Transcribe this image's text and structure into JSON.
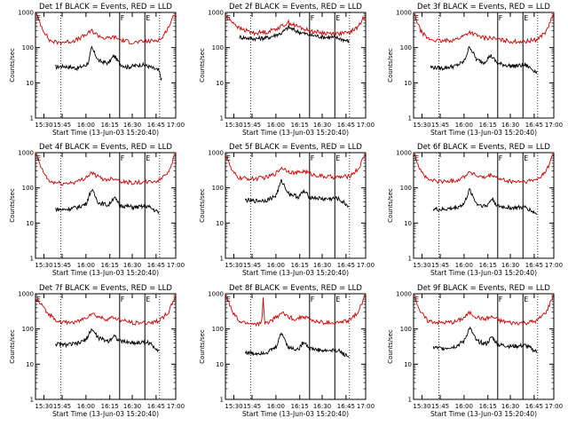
{
  "chart_data": [
    {
      "type": "line",
      "title": "Det 1f BLACK = Events, RED = LLD",
      "xlabel": "Start Time (13-Jun-03 15:20:40)",
      "ylabel": "Counts/sec",
      "xticks": [
        "15:30",
        "15:45",
        "16:00",
        "16:15",
        "16:30",
        "16:45",
        "17:00"
      ],
      "yticks": [
        "1",
        "10",
        "100",
        "1000"
      ],
      "ylim": [
        1,
        1000
      ],
      "ylog": true,
      "markers": [
        "E",
        "F",
        "E"
      ],
      "series": [
        {
          "color": "#000000",
          "x": [
            0.14,
            0.2,
            0.3,
            0.36,
            0.38,
            0.4,
            0.45,
            0.52,
            0.56,
            0.6,
            0.65,
            0.7,
            0.75,
            0.8,
            0.88,
            0.9
          ],
          "values": [
            28,
            30,
            26,
            32,
            40,
            100,
            42,
            36,
            60,
            35,
            28,
            30,
            33,
            30,
            22,
            12
          ]
        },
        {
          "color": "#cc0000",
          "x": [
            0.0,
            0.05,
            0.1,
            0.15,
            0.25,
            0.3,
            0.36,
            0.4,
            0.45,
            0.5,
            0.56,
            0.62,
            0.7,
            0.75,
            0.8,
            0.85,
            0.9,
            0.95,
            1.0
          ],
          "values": [
            1000,
            350,
            160,
            140,
            150,
            170,
            230,
            300,
            220,
            180,
            200,
            160,
            140,
            145,
            150,
            160,
            180,
            400,
            1000
          ]
        }
      ]
    },
    {
      "type": "line",
      "title": "Det 2f BLACK = Events, RED = LLD",
      "xlabel": "Start Time (13-Jun-03 15:20:40)",
      "ylabel": "Counts/sec",
      "xticks": [
        "15:30",
        "15:45",
        "16:00",
        "16:15",
        "16:30",
        "16:45",
        "17:00"
      ],
      "yticks": [
        "1",
        "10",
        "100",
        "1000"
      ],
      "ylim": [
        1,
        1000
      ],
      "ylog": true,
      "markers": [
        "E",
        "F",
        "E"
      ],
      "series": [
        {
          "color": "#000000",
          "x": [
            0.1,
            0.2,
            0.3,
            0.4,
            0.45,
            0.5,
            0.55,
            0.6,
            0.7,
            0.8,
            0.88
          ],
          "values": [
            200,
            180,
            190,
            260,
            380,
            300,
            260,
            230,
            200,
            190,
            150
          ]
        },
        {
          "color": "#cc0000",
          "x": [
            0.0,
            0.05,
            0.1,
            0.2,
            0.3,
            0.4,
            0.45,
            0.5,
            0.55,
            0.6,
            0.7,
            0.8,
            0.88,
            0.95,
            1.0
          ],
          "values": [
            800,
            550,
            350,
            260,
            280,
            400,
            520,
            420,
            350,
            300,
            260,
            250,
            260,
            400,
            900
          ]
        }
      ]
    },
    {
      "type": "line",
      "title": "Det 3f BLACK = Events, RED = LLD",
      "xlabel": "Start Time (13-Jun-03 15:20:40)",
      "ylabel": "Counts/sec",
      "xticks": [
        "15:30",
        "15:45",
        "16:00",
        "16:15",
        "16:30",
        "16:45",
        "17:00"
      ],
      "yticks": [
        "1",
        "10",
        "100",
        "1000"
      ],
      "ylim": [
        1,
        1000
      ],
      "ylog": true,
      "markers": [
        "E",
        "F",
        "E"
      ],
      "series": [
        {
          "color": "#000000",
          "x": [
            0.12,
            0.2,
            0.3,
            0.36,
            0.4,
            0.45,
            0.5,
            0.55,
            0.6,
            0.7,
            0.8,
            0.88
          ],
          "values": [
            28,
            26,
            30,
            40,
            110,
            45,
            38,
            60,
            35,
            30,
            32,
            20
          ]
        },
        {
          "color": "#cc0000",
          "x": [
            0.0,
            0.05,
            0.1,
            0.2,
            0.3,
            0.36,
            0.4,
            0.45,
            0.5,
            0.55,
            0.6,
            0.7,
            0.8,
            0.88,
            0.95,
            1.0
          ],
          "values": [
            1000,
            300,
            180,
            150,
            170,
            220,
            280,
            220,
            190,
            190,
            170,
            150,
            150,
            170,
            300,
            1000
          ]
        }
      ]
    },
    {
      "type": "line",
      "title": "Det 4f BLACK = Events, RED = LLD",
      "xlabel": "Start Time (13-Jun-03 15:20:40)",
      "ylabel": "Counts/sec",
      "xticks": [
        "15:30",
        "15:45",
        "16:00",
        "16:15",
        "16:30",
        "16:45",
        "17:00"
      ],
      "yticks": [
        "1",
        "10",
        "100",
        "1000"
      ],
      "ylim": [
        1,
        1000
      ],
      "ylog": true,
      "markers": [
        "E",
        "F",
        "E"
      ],
      "series": [
        {
          "color": "#000000",
          "x": [
            0.14,
            0.2,
            0.3,
            0.36,
            0.4,
            0.45,
            0.52,
            0.56,
            0.6,
            0.7,
            0.8,
            0.88
          ],
          "values": [
            25,
            24,
            28,
            35,
            90,
            38,
            32,
            55,
            32,
            28,
            30,
            20
          ]
        },
        {
          "color": "#cc0000",
          "x": [
            0.0,
            0.05,
            0.1,
            0.2,
            0.3,
            0.36,
            0.4,
            0.45,
            0.5,
            0.56,
            0.62,
            0.7,
            0.8,
            0.88,
            0.95,
            1.0
          ],
          "values": [
            1000,
            300,
            150,
            130,
            150,
            200,
            270,
            200,
            170,
            190,
            150,
            140,
            145,
            160,
            300,
            1000
          ]
        }
      ]
    },
    {
      "type": "line",
      "title": "Det 5f BLACK = Events, RED = LLD",
      "xlabel": "Start Time (13-Jun-03 15:20:40)",
      "ylabel": "Counts/sec",
      "xticks": [
        "15:30",
        "15:45",
        "16:00",
        "16:15",
        "16:30",
        "16:45",
        "17:00"
      ],
      "yticks": [
        "1",
        "10",
        "100",
        "1000"
      ],
      "ylim": [
        1,
        1000
      ],
      "ylog": true,
      "markers": [
        "E",
        "F",
        "E"
      ],
      "series": [
        {
          "color": "#000000",
          "x": [
            0.14,
            0.2,
            0.3,
            0.36,
            0.4,
            0.45,
            0.52,
            0.56,
            0.6,
            0.7,
            0.8,
            0.88
          ],
          "values": [
            45,
            42,
            45,
            60,
            160,
            70,
            55,
            80,
            55,
            48,
            50,
            30
          ]
        },
        {
          "color": "#cc0000",
          "x": [
            0.0,
            0.05,
            0.1,
            0.2,
            0.3,
            0.36,
            0.4,
            0.45,
            0.5,
            0.56,
            0.62,
            0.7,
            0.8,
            0.88,
            0.95,
            1.0
          ],
          "values": [
            900,
            280,
            190,
            180,
            200,
            260,
            380,
            300,
            260,
            300,
            240,
            210,
            200,
            210,
            350,
            1000
          ]
        }
      ]
    },
    {
      "type": "line",
      "title": "Det 6f BLACK = Events, RED = LLD",
      "xlabel": "Start Time (13-Jun-03 15:20:40)",
      "ylabel": "Counts/sec",
      "xticks": [
        "15:30",
        "15:45",
        "16:00",
        "16:15",
        "16:30",
        "16:45",
        "17:00"
      ],
      "yticks": [
        "1",
        "10",
        "100",
        "1000"
      ],
      "ylim": [
        1,
        1000
      ],
      "ylog": true,
      "markers": [
        "E",
        "F",
        "E"
      ],
      "series": [
        {
          "color": "#000000",
          "x": [
            0.14,
            0.2,
            0.3,
            0.36,
            0.4,
            0.45,
            0.52,
            0.56,
            0.6,
            0.7,
            0.8,
            0.88
          ],
          "values": [
            25,
            24,
            27,
            35,
            90,
            35,
            30,
            50,
            30,
            27,
            28,
            18
          ]
        },
        {
          "color": "#cc0000",
          "x": [
            0.0,
            0.05,
            0.1,
            0.2,
            0.3,
            0.36,
            0.4,
            0.45,
            0.5,
            0.56,
            0.62,
            0.7,
            0.8,
            0.88,
            0.95,
            1.0
          ],
          "values": [
            1000,
            320,
            170,
            150,
            160,
            210,
            290,
            220,
            190,
            230,
            170,
            150,
            150,
            170,
            320,
            1000
          ]
        }
      ]
    },
    {
      "type": "line",
      "title": "Det 7f BLACK = Events, RED = LLD",
      "xlabel": "Start Time (13-Jun-03 15:20:40)",
      "ylabel": "Counts/sec",
      "xticks": [
        "15:30",
        "15:45",
        "16:00",
        "16:15",
        "16:30",
        "16:45",
        "17:00"
      ],
      "yticks": [
        "1",
        "10",
        "100",
        "1000"
      ],
      "ylim": [
        1,
        1000
      ],
      "ylog": true,
      "markers": [
        "E",
        "F",
        "E"
      ],
      "series": [
        {
          "color": "#000000",
          "x": [
            0.14,
            0.2,
            0.3,
            0.36,
            0.4,
            0.45,
            0.52,
            0.56,
            0.6,
            0.7,
            0.8,
            0.88
          ],
          "values": [
            38,
            35,
            38,
            50,
            100,
            55,
            45,
            65,
            45,
            40,
            42,
            25
          ]
        },
        {
          "color": "#cc0000",
          "x": [
            0.0,
            0.04,
            0.08,
            0.15,
            0.2,
            0.3,
            0.36,
            0.4,
            0.45,
            0.5,
            0.56,
            0.62,
            0.7,
            0.8,
            0.88,
            0.95,
            1.0
          ],
          "values": [
            700,
            500,
            300,
            180,
            150,
            160,
            210,
            280,
            220,
            190,
            210,
            170,
            150,
            150,
            170,
            300,
            900
          ]
        }
      ]
    },
    {
      "type": "line",
      "title": "Det 8f BLACK = Events, RED = LLD",
      "xlabel": "Start Time (13-Jun-03 15:20:40)",
      "ylabel": "Counts/sec",
      "xticks": [
        "15:30",
        "15:45",
        "16:00",
        "16:15",
        "16:30",
        "16:45",
        "17:00"
      ],
      "yticks": [
        "1",
        "10",
        "100",
        "1000"
      ],
      "ylim": [
        1,
        1000
      ],
      "ylog": true,
      "markers": [
        "E",
        "F",
        "E"
      ],
      "series": [
        {
          "color": "#000000",
          "x": [
            0.14,
            0.2,
            0.3,
            0.36,
            0.4,
            0.45,
            0.52,
            0.56,
            0.6,
            0.7,
            0.8,
            0.88
          ],
          "values": [
            22,
            20,
            22,
            30,
            80,
            30,
            26,
            45,
            28,
            24,
            25,
            16
          ]
        },
        {
          "color": "#cc0000",
          "x": [
            0.0,
            0.05,
            0.1,
            0.2,
            0.26,
            0.27,
            0.28,
            0.3,
            0.36,
            0.4,
            0.45,
            0.5,
            0.56,
            0.62,
            0.7,
            0.8,
            0.88,
            0.95,
            1.0
          ],
          "values": [
            1000,
            300,
            160,
            140,
            140,
            1000,
            140,
            150,
            210,
            290,
            220,
            190,
            230,
            170,
            150,
            150,
            170,
            320,
            1000
          ]
        }
      ]
    },
    {
      "type": "line",
      "title": "Det 9f BLACK = Events, RED = LLD",
      "xlabel": "Start Time (13-Jun-03 15:20:40)",
      "ylabel": "Counts/sec",
      "xticks": [
        "15:30",
        "15:45",
        "16:00",
        "16:15",
        "16:30",
        "16:45",
        "17:00"
      ],
      "yticks": [
        "1",
        "10",
        "100",
        "1000"
      ],
      "ylim": [
        1,
        1000
      ],
      "ylog": true,
      "markers": [
        "E",
        "F",
        "E"
      ],
      "series": [
        {
          "color": "#000000",
          "x": [
            0.14,
            0.2,
            0.3,
            0.36,
            0.4,
            0.45,
            0.52,
            0.56,
            0.6,
            0.7,
            0.8,
            0.88
          ],
          "values": [
            30,
            28,
            32,
            45,
            110,
            45,
            38,
            60,
            36,
            32,
            34,
            22
          ]
        },
        {
          "color": "#cc0000",
          "x": [
            0.0,
            0.05,
            0.1,
            0.2,
            0.3,
            0.36,
            0.4,
            0.45,
            0.5,
            0.56,
            0.62,
            0.7,
            0.8,
            0.88,
            0.95,
            1.0
          ],
          "values": [
            1000,
            300,
            170,
            150,
            160,
            210,
            290,
            220,
            190,
            220,
            170,
            150,
            150,
            170,
            320,
            1000
          ]
        }
      ]
    }
  ]
}
